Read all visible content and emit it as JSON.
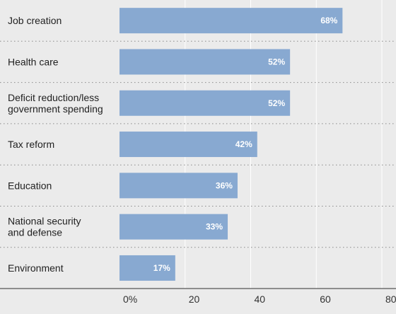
{
  "chart_data": {
    "type": "bar",
    "orientation": "horizontal",
    "categories": [
      [
        "Job creation"
      ],
      [
        "Health care"
      ],
      [
        "Deficit reduction/less",
        "government spending"
      ],
      [
        "Tax reform"
      ],
      [
        "Education"
      ],
      [
        "National security",
        "and defense"
      ],
      [
        "Environment"
      ]
    ],
    "values": [
      68,
      52,
      52,
      42,
      36,
      33,
      17
    ],
    "value_labels": [
      "68%",
      "52%",
      "52%",
      "42%",
      "36%",
      "33%",
      "17%"
    ],
    "xlim": [
      0,
      80
    ],
    "xticks": [
      0,
      20,
      40,
      60,
      80
    ],
    "xtick_labels": [
      "0%",
      "20",
      "40",
      "60",
      "80"
    ],
    "title": "",
    "xlabel": "",
    "ylabel": "",
    "grid": true,
    "legend": "none",
    "colors": {
      "bar": "#88a9d1",
      "background": "#ebebeb",
      "gridline": "#ffffff",
      "separator": "#8a8a8a",
      "axis": "#555555",
      "value_label": "#ffffff",
      "text": "#222222"
    }
  }
}
